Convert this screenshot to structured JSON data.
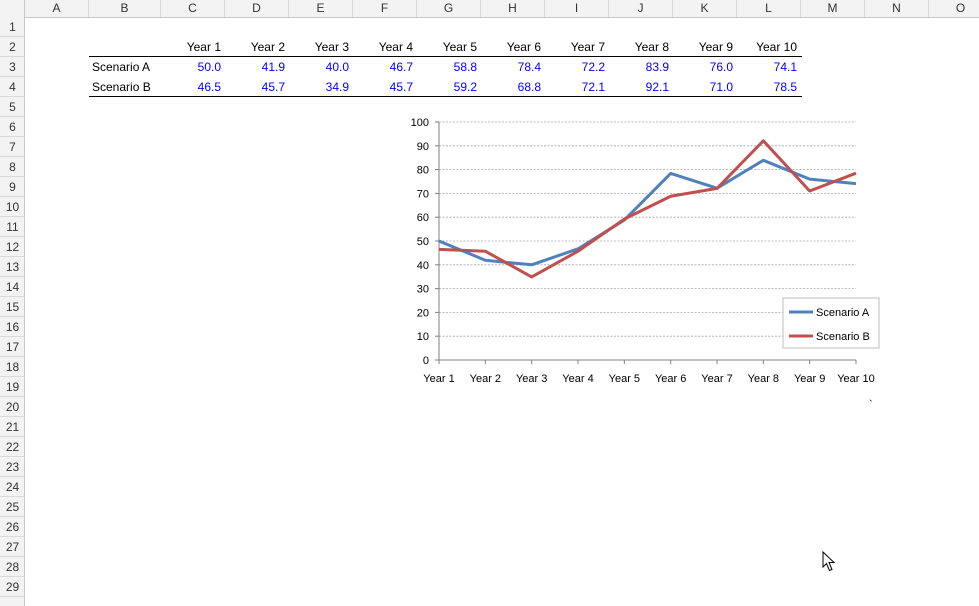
{
  "columns": [
    "A",
    "B",
    "C",
    "D",
    "E",
    "F",
    "G",
    "H",
    "I",
    "J",
    "K",
    "L",
    "M",
    "N",
    "O"
  ],
  "rows": [
    "1",
    "2",
    "3",
    "4",
    "5",
    "6",
    "7",
    "8",
    "9",
    "10",
    "11",
    "12",
    "13",
    "14",
    "15",
    "16",
    "17",
    "18",
    "19",
    "20",
    "21",
    "22",
    "23",
    "24",
    "25",
    "26",
    "27",
    "28",
    "29"
  ],
  "table": {
    "headers": [
      "Year 1",
      "Year 2",
      "Year 3",
      "Year 4",
      "Year 5",
      "Year 6",
      "Year 7",
      "Year 8",
      "Year 9",
      "Year 10"
    ],
    "rows": [
      {
        "label": "Scenario A",
        "values": [
          "50.0",
          "41.9",
          "40.0",
          "46.7",
          "58.8",
          "78.4",
          "72.2",
          "83.9",
          "76.0",
          "74.1"
        ]
      },
      {
        "label": "Scenario B",
        "values": [
          "46.5",
          "45.7",
          "34.9",
          "45.7",
          "59.2",
          "68.8",
          "72.1",
          "92.1",
          "71.0",
          "78.5"
        ]
      }
    ]
  },
  "chart_data": {
    "type": "line",
    "categories": [
      "Year 1",
      "Year 2",
      "Year 3",
      "Year 4",
      "Year 5",
      "Year 6",
      "Year 7",
      "Year 8",
      "Year 9",
      "Year 10"
    ],
    "series": [
      {
        "name": "Scenario A",
        "color": "#4f81bd",
        "values": [
          50.0,
          41.9,
          40.0,
          46.7,
          58.8,
          78.4,
          72.2,
          83.9,
          76.0,
          74.1
        ]
      },
      {
        "name": "Scenario B",
        "color": "#c0504d",
        "values": [
          46.5,
          45.7,
          34.9,
          45.7,
          59.2,
          68.8,
          72.1,
          92.1,
          71.0,
          78.5
        ]
      }
    ],
    "yticks": [
      "0",
      "10",
      "20",
      "30",
      "40",
      "50",
      "60",
      "70",
      "80",
      "90",
      "100"
    ],
    "ylim": [
      0,
      100
    ],
    "grid": true,
    "legend": "bottom-right",
    "title": "",
    "xlabel": "",
    "ylabel": ""
  },
  "stray_mark": "`"
}
